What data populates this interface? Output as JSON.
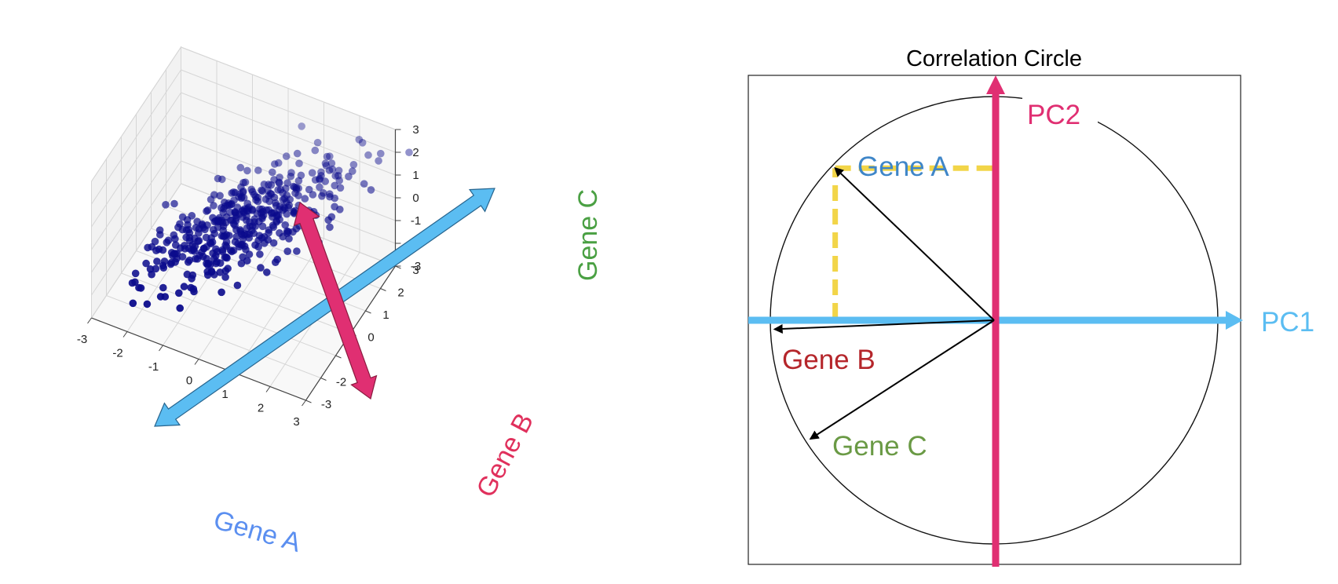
{
  "colors": {
    "gene_a": "#5b8ff0",
    "gene_b": "#e0305c",
    "gene_c": "#4aa043",
    "pc1": "#5bbdf2",
    "pc2": "#e02f72",
    "points": "#0b0b8c",
    "projection": "#f2d548",
    "cc_gene_a": "#3f86c8",
    "cc_gene_b": "#b5262b",
    "cc_gene_c": "#6a9a45"
  },
  "scatter3d": {
    "axes": {
      "x": {
        "label": "Gene A",
        "ticks": [
          "-3",
          "-2",
          "-1",
          "0",
          "1",
          "2",
          "3"
        ]
      },
      "y": {
        "label": "Gene B",
        "ticks": [
          "-3",
          "-2",
          "-1",
          "0",
          "1",
          "2",
          "3"
        ]
      },
      "z": {
        "label": "Gene C",
        "ticks": [
          "-3",
          "-2",
          "-1",
          "0",
          "1",
          "2",
          "3"
        ]
      }
    },
    "seed": 7,
    "point_count": 430
  },
  "correlation_circle": {
    "title": "Correlation Circle",
    "pc1_label": "PC1",
    "pc2_label": "PC2",
    "variables": [
      {
        "name": "Gene A",
        "x": -0.71,
        "y": 0.68
      },
      {
        "name": "Gene B",
        "x": -0.98,
        "y": -0.04
      },
      {
        "name": "Gene C",
        "x": -0.82,
        "y": -0.53
      }
    ]
  }
}
